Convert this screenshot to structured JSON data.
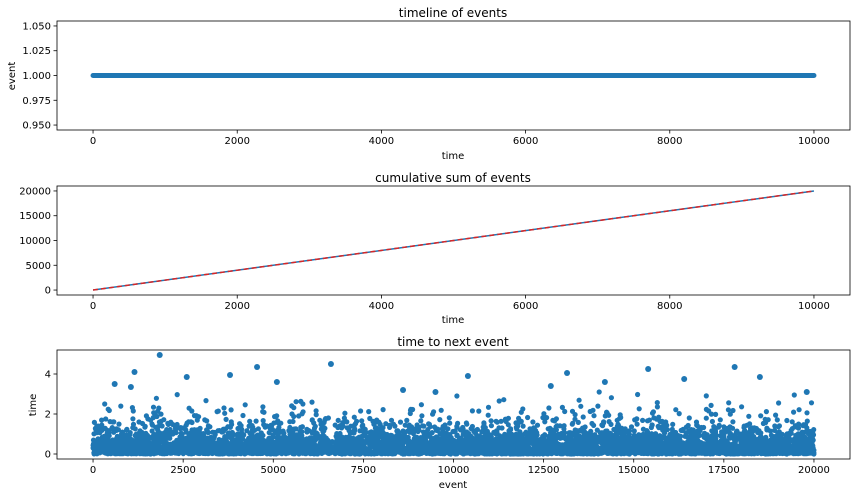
{
  "chart_data": [
    {
      "type": "scatter",
      "title": "timeline of events",
      "xlabel": "time",
      "ylabel": "event",
      "xlim": [
        -500,
        10500
      ],
      "ylim": [
        0.945,
        1.055
      ],
      "xticks": [
        0,
        2000,
        4000,
        6000,
        8000,
        10000
      ],
      "xtick_labels": [
        "0",
        "2000",
        "4000",
        "6000",
        "8000",
        "10000"
      ],
      "yticks": [
        0.95,
        0.975,
        1.0,
        1.025,
        1.05
      ],
      "ytick_labels": [
        "0.950",
        "0.975",
        "1.000",
        "1.025",
        "1.050"
      ],
      "series": [
        {
          "color": "#1f77b4",
          "x_range": [
            0,
            10000
          ],
          "y": 1.0,
          "count": 20000
        }
      ]
    },
    {
      "type": "line",
      "title": "cumulative sum of events",
      "xlabel": "time",
      "ylabel": "",
      "xlim": [
        -500,
        10500
      ],
      "ylim": [
        -1000,
        21000
      ],
      "xticks": [
        0,
        2000,
        4000,
        6000,
        8000,
        10000
      ],
      "xtick_labels": [
        "0",
        "2000",
        "4000",
        "6000",
        "8000",
        "10000"
      ],
      "yticks": [
        0,
        5000,
        10000,
        15000,
        20000
      ],
      "ytick_labels": [
        "0",
        "5000",
        "10000",
        "15000",
        "20000"
      ],
      "series": [
        {
          "color": "#1f77b4",
          "style": "solid",
          "x": [
            0,
            10000
          ],
          "y": [
            0,
            20000
          ]
        },
        {
          "color": "#d62728",
          "style": "dashed",
          "x": [
            0,
            10000
          ],
          "y": [
            0,
            20000
          ]
        }
      ]
    },
    {
      "type": "scatter",
      "title": "time to next event",
      "xlabel": "event",
      "ylabel": "time",
      "xlim": [
        -1000,
        21000
      ],
      "ylim": [
        -0.25,
        5.2
      ],
      "xticks": [
        0,
        2500,
        5000,
        7500,
        10000,
        12500,
        15000,
        17500,
        20000
      ],
      "xtick_labels": [
        "0",
        "2500",
        "5000",
        "7500",
        "10000",
        "12500",
        "15000",
        "17500",
        "20000"
      ],
      "yticks": [
        0,
        2,
        4
      ],
      "ytick_labels": [
        "0",
        "2",
        "4"
      ],
      "series": [
        {
          "color": "#1f77b4",
          "count": 20000,
          "distribution": "exponential",
          "mean": 0.5,
          "max": 5.0,
          "outliers": [
            [
              1850,
              4.95
            ],
            [
              6600,
              4.5
            ],
            [
              4550,
              4.35
            ],
            [
              1150,
              4.1
            ],
            [
              13150,
              4.05
            ],
            [
              15400,
              4.25
            ],
            [
              17800,
              4.35
            ],
            [
              10400,
              3.9
            ],
            [
              3800,
              3.95
            ],
            [
              18500,
              3.85
            ],
            [
              16400,
              3.75
            ],
            [
              14200,
              3.6
            ],
            [
              12700,
              3.4
            ],
            [
              8600,
              3.2
            ],
            [
              2600,
              3.85
            ],
            [
              1050,
              3.35
            ],
            [
              600,
              3.5
            ],
            [
              19800,
              3.1
            ],
            [
              9500,
              3.1
            ],
            [
              5100,
              3.6
            ]
          ]
        }
      ]
    }
  ]
}
